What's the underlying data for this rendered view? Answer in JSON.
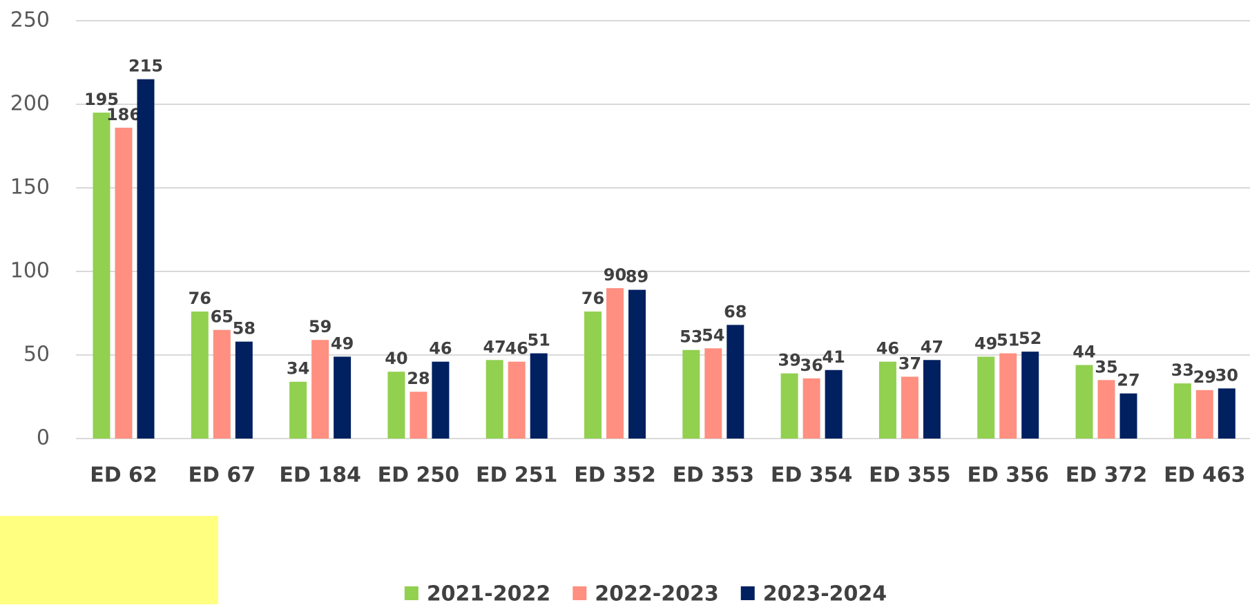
{
  "chart_data": {
    "type": "bar",
    "categories": [
      "ED 62",
      "ED 67",
      "ED 184",
      "ED 250",
      "ED 251",
      "ED 352",
      "ED 353",
      "ED 354",
      "ED 355",
      "ED 356",
      "ED 372",
      "ED 463"
    ],
    "series": [
      {
        "name": "2021-2022",
        "color": "#92d050",
        "values": [
          195,
          76,
          34,
          40,
          47,
          76,
          53,
          39,
          46,
          49,
          44,
          33
        ]
      },
      {
        "name": "2022-2023",
        "color": "#ff8f80",
        "values": [
          186,
          65,
          59,
          28,
          46,
          90,
          54,
          36,
          37,
          51,
          35,
          29
        ]
      },
      {
        "name": "2023-2024",
        "color": "#002060",
        "values": [
          215,
          58,
          49,
          46,
          51,
          89,
          68,
          41,
          47,
          52,
          27,
          30
        ]
      }
    ],
    "ylim": [
      0,
      250
    ],
    "yticks": [
      0,
      50,
      100,
      150,
      200,
      250
    ],
    "grid": true,
    "legend": "bottom"
  }
}
